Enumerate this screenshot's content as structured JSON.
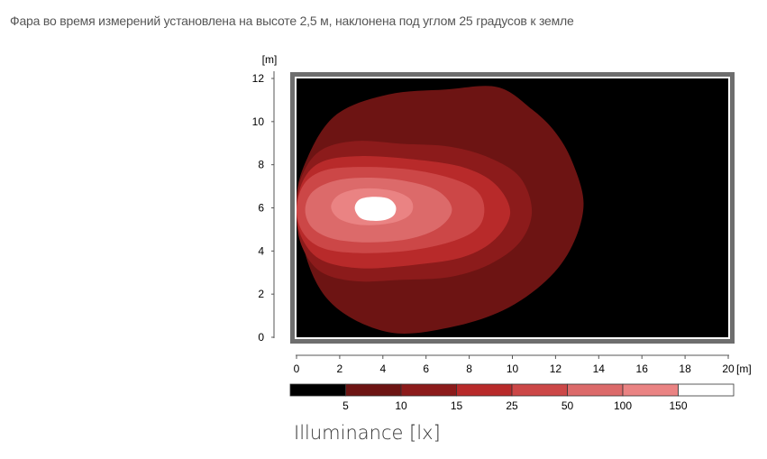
{
  "caption": "Фара во время измерений установлена на высоте 2,5 м, наклонена под углом 25 градусов к земле",
  "chart_data": {
    "type": "heatmap",
    "title": "",
    "xlabel": "[m]",
    "ylabel": "[m]",
    "xlim": [
      0,
      20
    ],
    "ylim": [
      0,
      12
    ],
    "xticks": [
      0,
      2,
      4,
      6,
      8,
      10,
      12,
      14,
      16,
      18,
      20
    ],
    "yticks": [
      0,
      2,
      4,
      6,
      8,
      10,
      12
    ],
    "background_color": "#000000",
    "frame_color": "#6e6e6e",
    "contours": [
      {
        "level": 5,
        "color": "#6d1413",
        "x_extent": [
          0,
          13.3
        ],
        "y_extent": [
          0.1,
          11.6
        ]
      },
      {
        "level": 10,
        "color": "#8c1b1b",
        "x_extent": [
          0,
          10.9
        ],
        "y_extent": [
          2.6,
          9.1
        ]
      },
      {
        "level": 15,
        "color": "#b82a2a",
        "x_extent": [
          0,
          9.9
        ],
        "y_extent": [
          3.2,
          8.4
        ]
      },
      {
        "level": 25,
        "color": "#cc4747",
        "x_extent": [
          0,
          8.7
        ],
        "y_extent": [
          3.9,
          7.9
        ]
      },
      {
        "level": 50,
        "color": "#dc6a6a",
        "x_extent": [
          0.4,
          7.2
        ],
        "y_extent": [
          4.4,
          7.4
        ]
      },
      {
        "level": 100,
        "color": "#ea8383",
        "x_extent": [
          1.6,
          5.4
        ],
        "y_extent": [
          5.2,
          6.9
        ]
      },
      {
        "level": 150,
        "color": "#ffffff",
        "x_extent": [
          2.7,
          4.6
        ],
        "y_extent": [
          5.4,
          6.5
        ]
      }
    ],
    "legend": {
      "title": "Illuminance [lx]",
      "placement": "bottom",
      "labels": [
        "5",
        "10",
        "15",
        "25",
        "50",
        "100",
        "150"
      ],
      "colors": [
        "#000000",
        "#6d1413",
        "#8c1b1b",
        "#b82a2a",
        "#cc4747",
        "#dc6a6a",
        "#ea8383",
        "#ffffff"
      ]
    }
  }
}
